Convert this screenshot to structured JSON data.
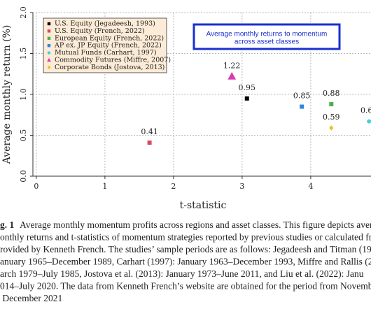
{
  "chart_data": {
    "type": "scatter",
    "ylabel": "Average monthly return (%)",
    "xlabel": "t-statistic",
    "xlim": [
      -0.05,
      4.9
    ],
    "ylim": [
      0,
      2
    ],
    "xticks": [
      0,
      1,
      2,
      3,
      4
    ],
    "yticks": [
      {
        "value": 0,
        "label": "0.0"
      },
      {
        "value": 0.5,
        "label": "0.5"
      },
      {
        "value": 1,
        "label": "1.0"
      },
      {
        "value": 1.5,
        "label": "1.5"
      },
      {
        "value": 2,
        "label": "2.0"
      }
    ],
    "grid": true,
    "legend": "upper left",
    "annotation": [
      "Average monthly returns to momentum",
      "across asset classes"
    ],
    "series": [
      {
        "name": "U.S. Equity (Jegadeesh, 1993)",
        "color": "#000000",
        "marker": "square",
        "x": [
          3.07
        ],
        "values": [
          0.95
        ]
      },
      {
        "name": "U.S. Equity (French, 2022)",
        "color": "#d9475e",
        "marker": "square",
        "x": [
          1.65
        ],
        "values": [
          0.41
        ]
      },
      {
        "name": "European Equity (French, 2022)",
        "color": "#4caf50",
        "marker": "square",
        "x": [
          4.3
        ],
        "values": [
          0.88
        ]
      },
      {
        "name": "AP ex. JP Equity (French, 2022)",
        "color": "#2e86de",
        "marker": "square",
        "x": [
          3.87
        ],
        "values": [
          0.85
        ]
      },
      {
        "name": "Mutual Funds (Carhart, 1997)",
        "color": "#3fd0e0",
        "marker": "circle",
        "x": [
          4.85
        ],
        "values": [
          0.67
        ]
      },
      {
        "name": "Commodity Futures (Miffre, 2007)",
        "color": "#d63bb0",
        "marker": "triangle",
        "x": [
          2.85
        ],
        "values": [
          1.22
        ]
      },
      {
        "name": "Corporate Bonds (Jostova, 2013)",
        "color": "#f0c020",
        "marker": "diamond",
        "x": [
          4.3
        ],
        "values": [
          0.59
        ]
      }
    ]
  },
  "caption": {
    "label": "g. 1",
    "lines": [
      "Average monthly momentum profits across regions and asset classes. This figure depicts aver",
      "onthly returns and t-statistics of momentum strategies reported by previous studies or calculated from d",
      "rovided by Kenneth French. The studies’ sample periods are as follows: Jegadeesh and Titman (199",
      "anuary 1965–December 1989, Carhart (1997): January 1963–December 1993, Miffre and Rallis (200",
      "arch 1979–July 1985, Jostova et al. (2013): January 1973–June 2011, and Liu et al. (2022): Janu",
      "014–July 2020. The data from Kenneth French’s website are obtained for the period from November 19",
      " December 2021"
    ]
  }
}
